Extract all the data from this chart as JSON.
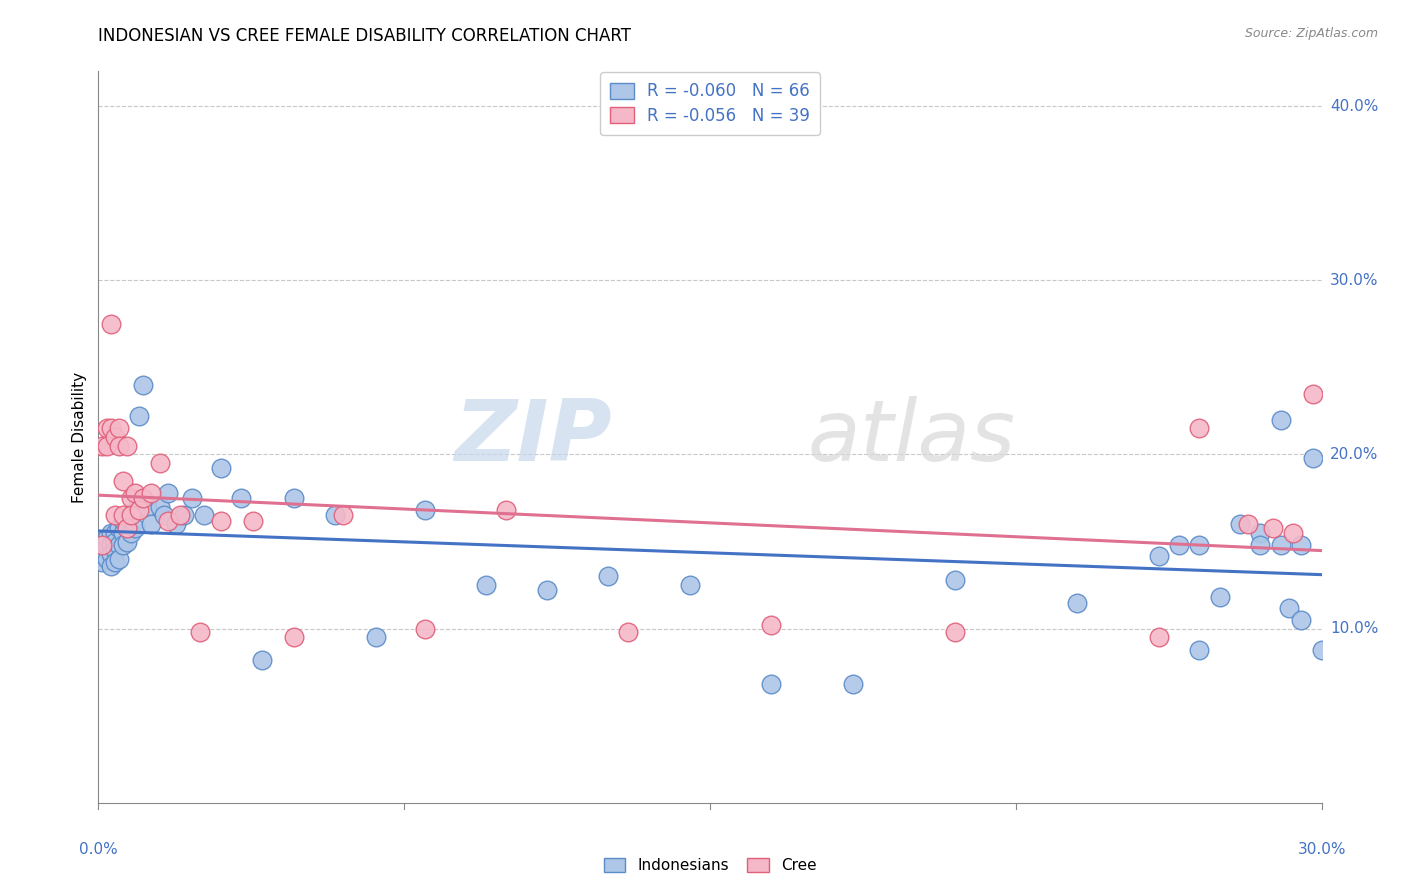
{
  "title": "INDONESIAN VS CREE FEMALE DISABILITY CORRELATION CHART",
  "source": "Source: ZipAtlas.com",
  "ylabel": "Female Disability",
  "watermark_zip": "ZIP",
  "watermark_atlas": "atlas",
  "legend_blue_r": "R = -0.060",
  "legend_blue_n": "N = 66",
  "legend_pink_r": "R = -0.056",
  "legend_pink_n": "N = 39",
  "blue_fill": "#aec6e8",
  "blue_edge": "#5b8cc8",
  "pink_fill": "#f5b8c8",
  "pink_edge": "#e0607a",
  "blue_line": "#4472c4",
  "pink_line": "#e07090",
  "text_blue": "#4472c4",
  "xlim": [
    0.0,
    0.3
  ],
  "ylim": [
    0.0,
    0.42
  ],
  "yticks": [
    0.1,
    0.2,
    0.3,
    0.4
  ],
  "ytick_labels": [
    "10.0%",
    "20.0%",
    "30.0%",
    "40.0%"
  ],
  "blue_x": [
    0.001,
    0.001,
    0.002,
    0.002,
    0.002,
    0.003,
    0.003,
    0.003,
    0.003,
    0.004,
    0.004,
    0.004,
    0.004,
    0.005,
    0.005,
    0.005,
    0.006,
    0.006,
    0.006,
    0.007,
    0.007,
    0.008,
    0.008,
    0.009,
    0.009,
    0.01,
    0.011,
    0.012,
    0.013,
    0.015,
    0.016,
    0.017,
    0.019,
    0.021,
    0.023,
    0.026,
    0.03,
    0.035,
    0.04,
    0.048,
    0.058,
    0.068,
    0.08,
    0.095,
    0.11,
    0.125,
    0.145,
    0.165,
    0.185,
    0.21,
    0.24,
    0.265,
    0.27,
    0.275,
    0.285,
    0.29,
    0.292,
    0.295,
    0.298,
    0.3,
    0.295,
    0.29,
    0.285,
    0.28,
    0.27,
    0.26
  ],
  "blue_y": [
    0.138,
    0.143,
    0.148,
    0.152,
    0.14,
    0.155,
    0.148,
    0.143,
    0.136,
    0.155,
    0.15,
    0.145,
    0.138,
    0.158,
    0.148,
    0.14,
    0.162,
    0.155,
    0.148,
    0.158,
    0.15,
    0.165,
    0.155,
    0.168,
    0.158,
    0.222,
    0.24,
    0.17,
    0.16,
    0.17,
    0.165,
    0.178,
    0.16,
    0.165,
    0.175,
    0.165,
    0.192,
    0.175,
    0.082,
    0.175,
    0.165,
    0.095,
    0.168,
    0.125,
    0.122,
    0.13,
    0.125,
    0.068,
    0.068,
    0.128,
    0.115,
    0.148,
    0.088,
    0.118,
    0.155,
    0.148,
    0.112,
    0.105,
    0.198,
    0.088,
    0.148,
    0.22,
    0.148,
    0.16,
    0.148,
    0.142
  ],
  "pink_x": [
    0.001,
    0.001,
    0.002,
    0.002,
    0.003,
    0.003,
    0.004,
    0.004,
    0.005,
    0.005,
    0.006,
    0.006,
    0.007,
    0.007,
    0.008,
    0.008,
    0.009,
    0.01,
    0.011,
    0.013,
    0.015,
    0.017,
    0.02,
    0.025,
    0.03,
    0.038,
    0.048,
    0.06,
    0.08,
    0.1,
    0.13,
    0.165,
    0.21,
    0.26,
    0.27,
    0.282,
    0.288,
    0.293,
    0.298
  ],
  "pink_y": [
    0.148,
    0.205,
    0.215,
    0.205,
    0.275,
    0.215,
    0.21,
    0.165,
    0.215,
    0.205,
    0.185,
    0.165,
    0.205,
    0.158,
    0.175,
    0.165,
    0.178,
    0.168,
    0.175,
    0.178,
    0.195,
    0.162,
    0.165,
    0.098,
    0.162,
    0.162,
    0.095,
    0.165,
    0.1,
    0.168,
    0.098,
    0.102,
    0.098,
    0.095,
    0.215,
    0.16,
    0.158,
    0.155,
    0.235
  ],
  "background_color": "#ffffff",
  "grid_color": "#c8c8c8"
}
